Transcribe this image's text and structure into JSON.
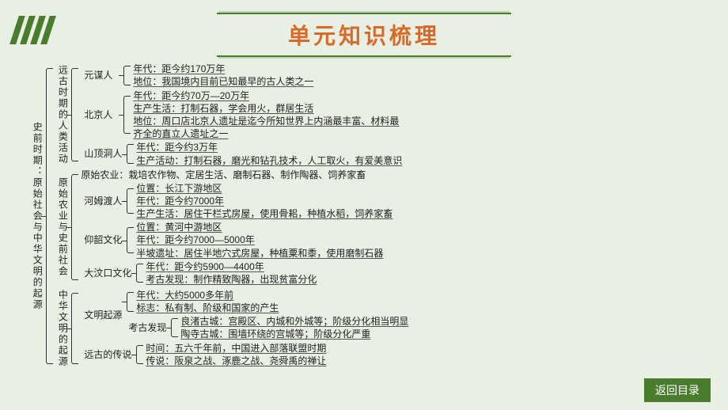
{
  "title": "单元知识梳理",
  "btn": "返回目录",
  "colors": {
    "bg": "#e8efe3",
    "accent": "#4a7c2e",
    "title": "#d86a28",
    "text": "#222222"
  },
  "root": {
    "label": "史前时期：原始社会与中华文明的起源",
    "vertical": true,
    "children": [
      {
        "label": "远古时期的人类活动",
        "vertical": true,
        "children": [
          {
            "label": "元谋人",
            "lines": [
              {
                "t": "年代：距今约170万年",
                "u": true
              },
              {
                "t": "地位：我国境内目前已知最早的古人类之一",
                "u": true
              }
            ]
          },
          {
            "label": "北京人",
            "lines": [
              {
                "t": "年代：距今约70万—20万年",
                "u": true
              },
              {
                "t": "生产生活：打制石器，学会用火，群居生活",
                "u": true
              },
              {
                "t": "地位：周口店北京人遗址是迄今所知世界上内涵最丰富、材料最",
                "u": true
              },
              {
                "t": "齐全的直立人遗址之一",
                "u": true
              }
            ]
          },
          {
            "label": "山顶洞人",
            "lines": [
              {
                "t": "年代：距今约3万年",
                "u": true
              },
              {
                "t": "生产活动：打制石器，磨光和钻孔技术，人工取火，有爱美意识",
                "u": true
              }
            ]
          }
        ]
      },
      {
        "label": "原始农业与史前社会",
        "vertical": true,
        "children": [
          {
            "label": "",
            "lines": [
              {
                "t": "原始农业：栽培农作物、定居生活、磨制石器、制作陶器、饲养家畜",
                "u": false
              }
            ]
          },
          {
            "label": "河姆渡人",
            "lines": [
              {
                "t": "位置：长江下游地区",
                "u": true
              },
              {
                "t": "年代：距今约7000年",
                "u": true
              },
              {
                "t": "生产生活：居住干栏式房屋，使用骨耜，种植水稻，饲养家畜",
                "u": true
              }
            ]
          },
          {
            "label": "仰韶文化",
            "lines": [
              {
                "t": "位置：黄河中游地区",
                "u": true
              },
              {
                "t": "年代：距今约7000—5000年",
                "u": true
              },
              {
                "t": "半坡遗址：居住半地穴式房屋，种植粟和黍，使用磨制石器",
                "u": true
              }
            ]
          },
          {
            "label": "大汶口文化",
            "lines": [
              {
                "t": "年代：距今约5900—4400年",
                "u": true
              },
              {
                "t": "考古发现：制作精致陶器，出现贫富分化",
                "u": true
              }
            ]
          }
        ]
      },
      {
        "label": "中华文明的起源",
        "vertical": true,
        "children": [
          {
            "label": "文明起源",
            "lines": [
              {
                "t": "年代：大约5000多年前",
                "u": true
              },
              {
                "t": "标志：私有制、阶级和国家的产生",
                "u": true
              }
            ],
            "sub": {
              "label": "考古发现",
              "lines": [
                {
                  "t": "良渚古城：宫殿区、内城和外城等；阶级分化相当明显",
                  "u": true
                },
                {
                  "t": "陶寺古城：围墙环绕的宫城等；阶级分化严重",
                  "u": true
                }
              ]
            }
          },
          {
            "label": "远古的传说",
            "lines": [
              {
                "t": "时间：五六千年前，中国进入部落联盟时期",
                "u": true
              },
              {
                "t": "传说：阪泉之战、涿鹿之战、尧舜禹的禅让",
                "u": true
              }
            ]
          }
        ]
      }
    ]
  }
}
